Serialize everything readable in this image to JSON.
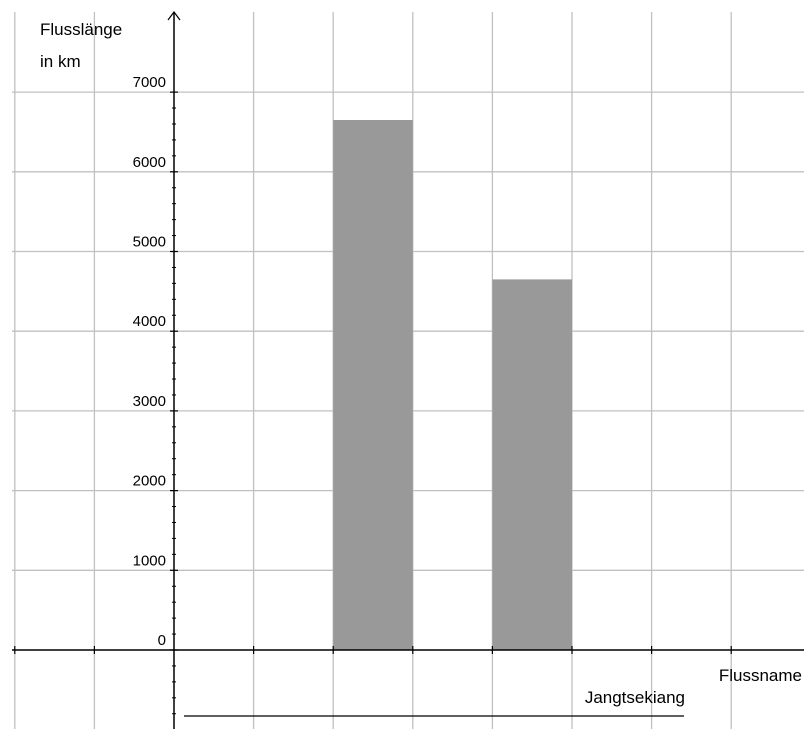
{
  "chart_data": {
    "type": "bar",
    "categories": [
      "",
      "",
      "",
      "",
      "",
      "",
      "",
      "",
      ""
    ],
    "values": [
      null,
      null,
      6650,
      null,
      4650,
      null,
      null,
      null,
      null
    ],
    "bar_color": "#999999",
    "ylabel_line1": "Flusslänge",
    "ylabel_line2": "in km",
    "xlabel": "Flussname",
    "answer_label": "Jangtsekiang",
    "y_ticks": [
      "0",
      "1000",
      "2000",
      "3000",
      "4000",
      "5000",
      "6000",
      "7000"
    ],
    "ylim": [
      -1000,
      8000
    ],
    "grid": true,
    "grid_color": "#c0c0c0"
  }
}
